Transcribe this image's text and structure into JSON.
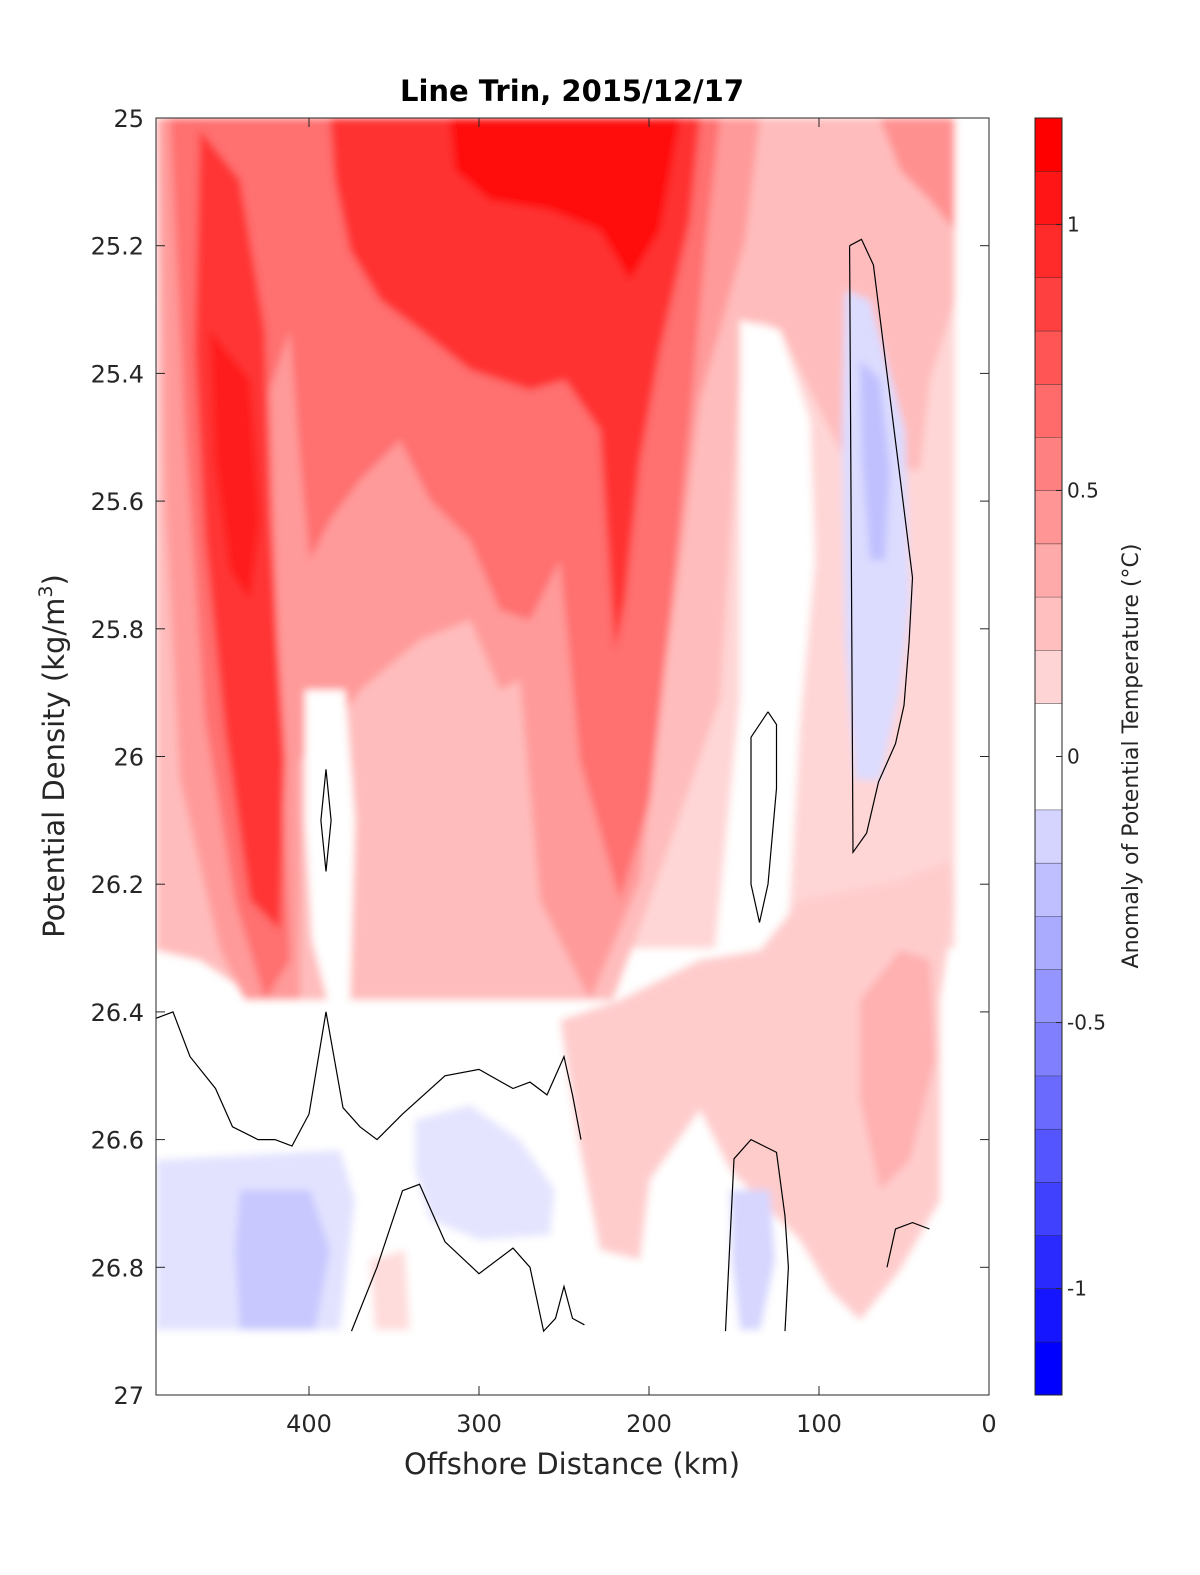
{
  "chart_data": {
    "type": "heatmap",
    "title": "Line Trin, 2015/12/17",
    "xlabel": "Offshore Distance (km)",
    "ylabel_main": "Potential Density (kg/m",
    "ylabel_sup": "3",
    "ylabel_close": ")",
    "colorbar_label": "Anomaly of Potential Temperature (°C)",
    "xlim": [
      490,
      0
    ],
    "ylim": [
      25,
      27
    ],
    "x_ticks": [
      400,
      300,
      200,
      100,
      0
    ],
    "x_tick_labels": [
      "400",
      "300",
      "200",
      "100",
      "0"
    ],
    "y_ticks": [
      25,
      25.2,
      25.4,
      25.6,
      25.8,
      26,
      26.2,
      26.4,
      26.6,
      26.8,
      27
    ],
    "y_tick_labels": [
      "25",
      "25.2",
      "25.4",
      "25.6",
      "25.8",
      "26",
      "26.2",
      "26.4",
      "26.6",
      "26.8",
      "27"
    ],
    "colorbar_range": [
      -1.2,
      1.2
    ],
    "colorbar_levels": [
      -1.2,
      -1.1,
      -1.0,
      -0.9,
      -0.8,
      -0.7,
      -0.6,
      -0.5,
      -0.4,
      -0.3,
      -0.2,
      -0.1,
      0.1,
      0.2,
      0.3,
      0.4,
      0.5,
      0.6,
      0.7,
      0.8,
      0.9,
      1.0,
      1.1,
      1.2
    ],
    "colorbar_ticks": [
      1,
      0.5,
      0,
      -0.5,
      -1
    ],
    "colorbar_tick_labels": [
      "1",
      "0.5",
      "0",
      "-0.5",
      "-1"
    ],
    "data_x_range": [
      490,
      20
    ],
    "data_y_range": [
      25,
      26.9
    ],
    "colors": {
      "positive": "#ff0000",
      "negative": "#0000ff",
      "zero_band": "#ffffff",
      "contour": "#000000"
    },
    "zero_contours": [
      {
        "x": [
          82,
          75,
          68,
          60,
          52,
          45,
          47,
          50,
          55,
          65,
          72,
          80,
          82
        ],
        "y": [
          25.2,
          25.19,
          25.23,
          25.4,
          25.57,
          25.72,
          25.82,
          25.92,
          25.98,
          26.04,
          26.12,
          26.15,
          25.2
        ]
      },
      {
        "x": [
          130,
          140,
          140,
          135,
          130,
          125,
          125,
          130
        ],
        "y": [
          25.93,
          25.97,
          26.2,
          26.26,
          26.2,
          26.05,
          25.95,
          25.93
        ]
      },
      {
        "x": [
          390,
          393,
          390,
          387,
          390
        ],
        "y": [
          26.02,
          26.1,
          26.18,
          26.1,
          26.02
        ]
      },
      {
        "x": [
          490,
          480,
          470,
          455,
          445,
          430,
          420,
          410,
          400,
          390,
          380,
          370,
          360,
          345,
          320,
          300,
          280,
          270,
          260,
          250,
          245,
          240
        ],
        "y": [
          26.41,
          26.4,
          26.47,
          26.52,
          26.58,
          26.6,
          26.6,
          26.61,
          26.56,
          26.4,
          26.55,
          26.58,
          26.6,
          26.56,
          26.5,
          26.49,
          26.52,
          26.51,
          26.53,
          26.47,
          26.53,
          26.6
        ]
      },
      {
        "x": [
          375,
          360,
          345,
          335,
          320,
          300,
          280,
          270,
          262,
          255,
          250,
          245,
          238
        ],
        "y": [
          26.9,
          26.8,
          26.68,
          26.67,
          26.76,
          26.81,
          26.77,
          26.8,
          26.9,
          26.88,
          26.83,
          26.88,
          26.89
        ]
      },
      {
        "x": [
          155,
          150,
          140,
          125,
          120,
          118,
          120
        ],
        "y": [
          26.9,
          26.63,
          26.6,
          26.62,
          26.72,
          26.8,
          26.9
        ]
      },
      {
        "x": [
          60,
          55,
          45,
          35
        ],
        "y": [
          26.8,
          26.74,
          26.73,
          26.74
        ]
      }
    ]
  }
}
